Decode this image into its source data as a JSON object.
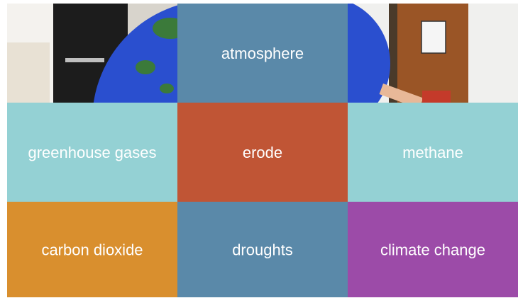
{
  "tiles": [
    {
      "label": "atmosphere",
      "color": "#5a89a9"
    },
    {
      "label": "greenhouse gases",
      "color": "#94d1d4"
    },
    {
      "label": "erode",
      "color": "#c05535"
    },
    {
      "label": "methane",
      "color": "#94d1d4"
    },
    {
      "label": "carbon dioxide",
      "color": "#d98f2e"
    },
    {
      "label": "droughts",
      "color": "#5a89a9"
    },
    {
      "label": "climate change",
      "color": "#9c4ba8"
    }
  ]
}
